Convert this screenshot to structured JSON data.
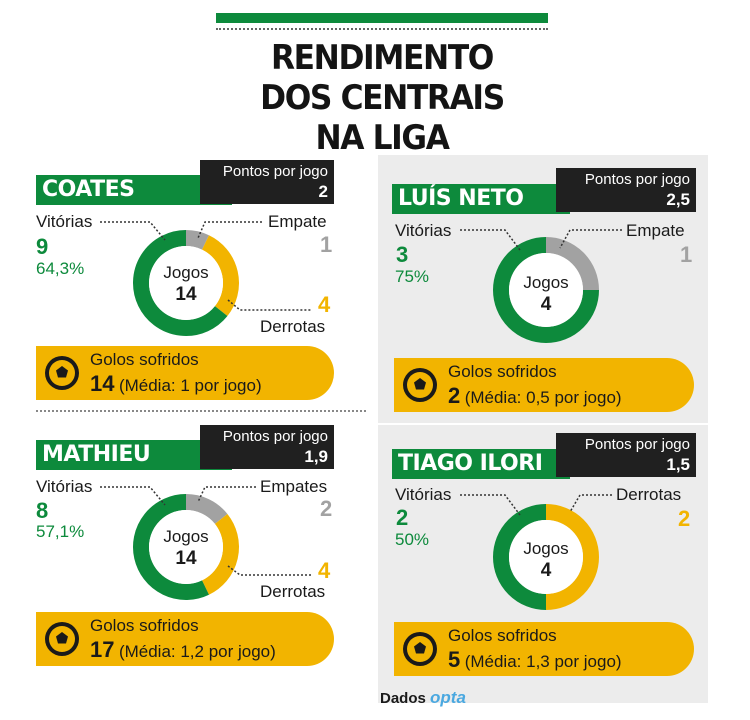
{
  "title": [
    "RENDIMENTO",
    "DOS CENTRAIS",
    "NA LIGA"
  ],
  "source": {
    "label": "Dados",
    "brand": "opta"
  },
  "colors": {
    "wins": "#0d8a3c",
    "draws": "#a2a2a2",
    "losses": "#f2b400",
    "dark": "#202020"
  },
  "chart_data": [
    {
      "type": "pie",
      "title": "COATES",
      "center_label": "Jogos",
      "total": "14",
      "ppj_label": "Pontos por jogo",
      "ppj": "2",
      "segments": [
        {
          "label": "Vitórias",
          "value": 9,
          "display": "9",
          "pct": "64,3%"
        },
        {
          "label": "Empate",
          "value": 1,
          "display": "1"
        },
        {
          "label": "Derrotas",
          "value": 4,
          "display": "4"
        }
      ],
      "goals": {
        "label": "Golos sofridos",
        "value": "14",
        "avg": "(Média: 1 por jogo)"
      }
    },
    {
      "type": "pie",
      "title": "LUÍS NETO",
      "center_label": "Jogos",
      "total": "4",
      "ppj_label": "Pontos por jogo",
      "ppj": "2,5",
      "segments": [
        {
          "label": "Vitórias",
          "value": 3,
          "display": "3",
          "pct": "75%"
        },
        {
          "label": "Empate",
          "value": 1,
          "display": "1"
        }
      ],
      "goals": {
        "label": "Golos sofridos",
        "value": "2",
        "avg": "(Média: 0,5 por jogo)"
      }
    },
    {
      "type": "pie",
      "title": "MATHIEU",
      "center_label": "Jogos",
      "total": "14",
      "ppj_label": "Pontos por jogo",
      "ppj": "1,9",
      "segments": [
        {
          "label": "Vitórias",
          "value": 8,
          "display": "8",
          "pct": "57,1%"
        },
        {
          "label": "Empates",
          "value": 2,
          "display": "2"
        },
        {
          "label": "Derrotas",
          "value": 4,
          "display": "4"
        }
      ],
      "goals": {
        "label": "Golos sofridos",
        "value": "17",
        "avg": "(Média: 1,2 por jogo)"
      }
    },
    {
      "type": "pie",
      "title": "TIAGO ILORI",
      "center_label": "Jogos",
      "total": "4",
      "ppj_label": "Pontos por jogo",
      "ppj": "1,5",
      "segments": [
        {
          "label": "Vitórias",
          "value": 2,
          "display": "2",
          "pct": "50%"
        },
        {
          "label": "Derrotas",
          "value": 2,
          "display": "2"
        }
      ],
      "goals": {
        "label": "Golos sofridos",
        "value": "5",
        "avg": "(Média: 1,3 por jogo)"
      }
    }
  ]
}
